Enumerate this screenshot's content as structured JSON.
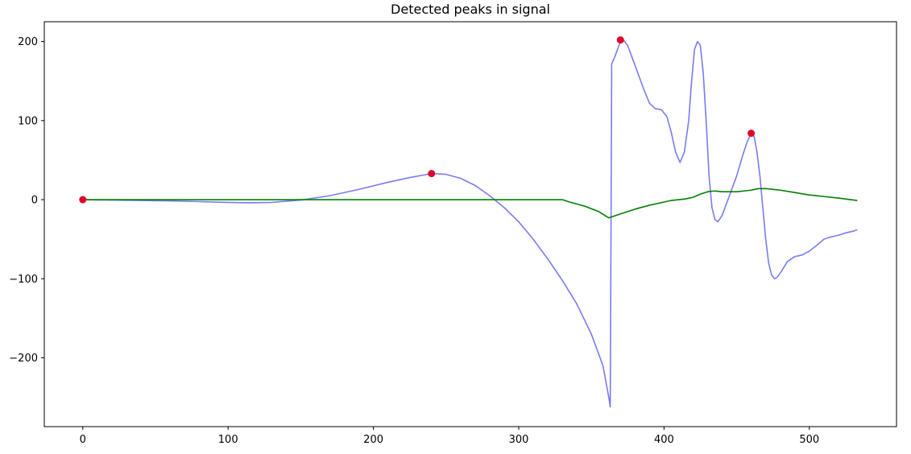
{
  "chart_data": {
    "type": "line",
    "title": "Detected peaks in signal",
    "xlabel": "",
    "ylabel": "",
    "xlim": [
      -26.5,
      560
    ],
    "ylim": [
      -287,
      225
    ],
    "grid": false,
    "xticks": [
      0,
      100,
      200,
      300,
      400,
      500
    ],
    "yticks": [
      -200,
      -100,
      0,
      100,
      200
    ],
    "tick_labels": {
      "x": [
        "0",
        "100",
        "200",
        "300",
        "400",
        "500"
      ],
      "y": [
        "−200",
        "−100",
        "0",
        "100",
        "200"
      ]
    },
    "series": [
      {
        "color": "#7a7af5",
        "x": [
          0,
          20,
          40,
          60,
          80,
          100,
          115,
          130,
          150,
          170,
          190,
          210,
          225,
          240,
          250,
          260,
          270,
          280,
          290,
          300,
          310,
          320,
          330,
          340,
          350,
          358,
          362,
          363,
          364,
          366,
          368,
          370,
          372,
          375,
          378,
          382,
          386,
          390,
          394,
          398,
          402,
          405,
          408,
          411,
          414,
          417,
          419,
          421,
          423,
          425,
          427,
          429,
          431,
          433,
          435,
          437,
          440,
          443,
          446,
          450,
          454,
          457,
          460,
          462,
          464,
          466,
          468,
          470,
          472,
          474,
          476,
          478,
          481,
          485,
          490,
          495,
          500,
          505,
          510,
          515,
          520,
          525,
          530,
          533
        ],
        "y": [
          0,
          -0.5,
          -1,
          -1.5,
          -2.5,
          -3.5,
          -4,
          -3.5,
          -0.5,
          5,
          13,
          22,
          28,
          33,
          32,
          27,
          18,
          5,
          -10,
          -28,
          -50,
          -75,
          -102,
          -132,
          -170,
          -210,
          -250,
          -262,
          172,
          180,
          190,
          200,
          202,
          195,
          180,
          160,
          140,
          122,
          115,
          114,
          105,
          85,
          60,
          47,
          60,
          100,
          150,
          190,
          200,
          195,
          160,
          100,
          30,
          -10,
          -25,
          -28,
          -20,
          -5,
          10,
          30,
          55,
          72,
          84,
          80,
          60,
          30,
          -10,
          -50,
          -80,
          -95,
          -100,
          -98,
          -90,
          -78,
          -72,
          -70,
          -65,
          -58,
          -50,
          -47,
          -45,
          -42,
          -40,
          -38
        ]
      },
      {
        "color": "#008000",
        "x": [
          0,
          50,
          100,
          150,
          200,
          250,
          300,
          330,
          335,
          345,
          355,
          362,
          370,
          380,
          390,
          400,
          405,
          410,
          415,
          420,
          425,
          430,
          435,
          440,
          445,
          450,
          455,
          460,
          465,
          470,
          480,
          490,
          500,
          510,
          520,
          533
        ],
        "y": [
          0,
          0,
          0,
          0,
          0,
          0,
          0,
          0,
          -3,
          -8,
          -15,
          -23,
          -18,
          -12,
          -7,
          -3,
          -1,
          0,
          1,
          3,
          7,
          10,
          11,
          10,
          10,
          10,
          11,
          12,
          14,
          14,
          12,
          9,
          6,
          4,
          2,
          -1
        ]
      }
    ],
    "peaks": {
      "color": "#e0002a",
      "x": [
        0,
        240,
        370,
        460
      ],
      "y": [
        0,
        33,
        202,
        84
      ]
    }
  }
}
